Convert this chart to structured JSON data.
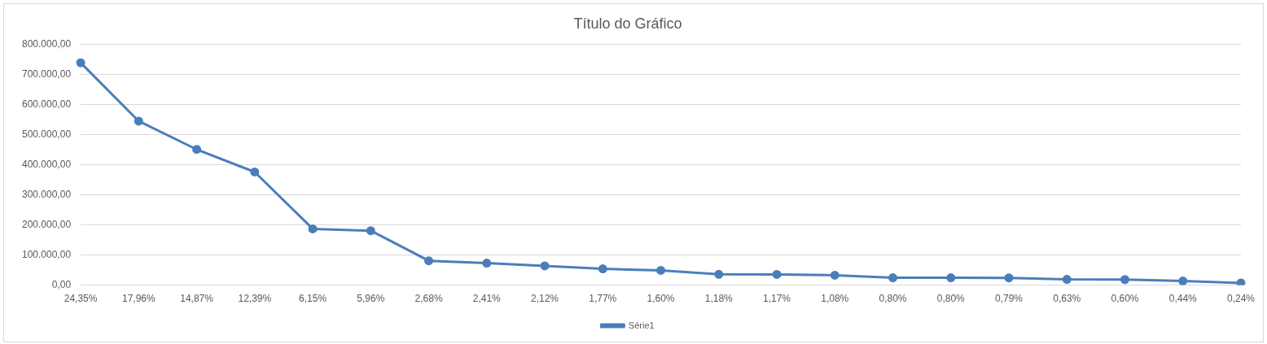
{
  "chart_data": {
    "type": "line",
    "title": "Título do Gráfico",
    "categories": [
      "24,35%",
      "17,96%",
      "14,87%",
      "12,39%",
      "6,15%",
      "5,96%",
      "2,68%",
      "2,41%",
      "2,12%",
      "1,77%",
      "1,60%",
      "1,18%",
      "1,17%",
      "1,08%",
      "0,80%",
      "0,80%",
      "0,79%",
      "0,63%",
      "0,60%",
      "0,44%",
      "0,24%"
    ],
    "series": [
      {
        "name": "Série1",
        "color": "#4a7ebb",
        "values": [
          739000,
          545000,
          451000,
          376000,
          187000,
          181000,
          81000,
          73000,
          64000,
          54000,
          49000,
          36000,
          35500,
          33000,
          24500,
          24300,
          24000,
          19000,
          18500,
          13500,
          7000
        ]
      }
    ],
    "ylim": [
      0,
      800000
    ],
    "yticks": [
      {
        "value": 0,
        "label": "0,00"
      },
      {
        "value": 100000,
        "label": "100.000,00"
      },
      {
        "value": 200000,
        "label": "200.000,00"
      },
      {
        "value": 300000,
        "label": "300.000,00"
      },
      {
        "value": 400000,
        "label": "400.000,00"
      },
      {
        "value": 500000,
        "label": "500.000,00"
      },
      {
        "value": 600000,
        "label": "600.000,00"
      },
      {
        "value": 700000,
        "label": "700.000,00"
      },
      {
        "value": 800000,
        "label": "800.000,00"
      }
    ],
    "grid": "y",
    "legend": "bottom",
    "marker": "circle",
    "line_style": "solid"
  }
}
